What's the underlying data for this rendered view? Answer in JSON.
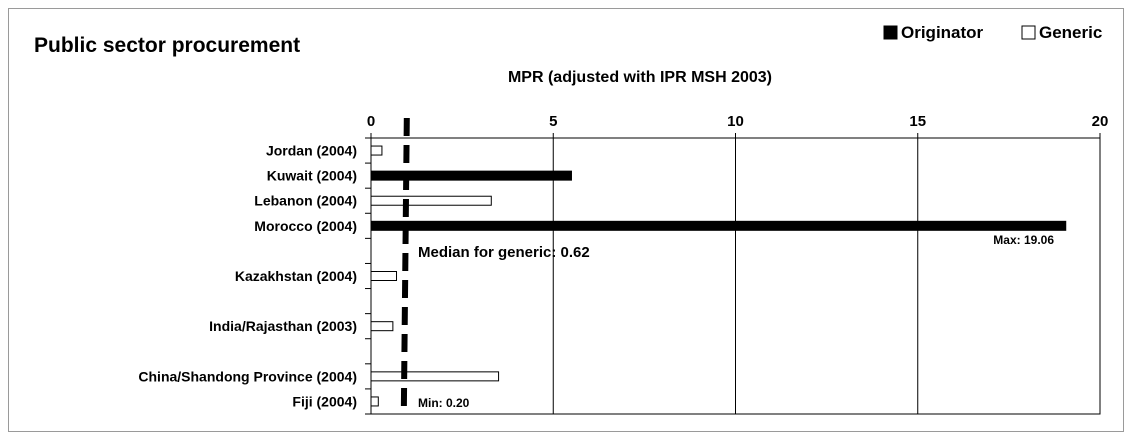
{
  "chart_data": {
    "type": "bar",
    "orientation": "horizontal",
    "title": "Public sector procurement",
    "subtitle": "MPR (adjusted with IPR MSH 2003)",
    "xlim": [
      0,
      20
    ],
    "x_ticks": [
      0,
      5,
      10,
      15,
      20
    ],
    "grid": "vertical",
    "legend_position": "top-right",
    "categories": [
      "Jordan (2004)",
      "Kuwait (2004)",
      "Lebanon (2004)",
      "Morocco (2004)",
      "",
      "Kazakhstan (2004)",
      "",
      "India/Rajasthan (2003)",
      "",
      "China/Shandong Province (2004)",
      "Fiji (2004)"
    ],
    "series": [
      {
        "name": "Originator",
        "color": "#000000",
        "values": [
          null,
          5.5,
          null,
          19.06,
          null,
          null,
          null,
          null,
          null,
          null,
          null
        ]
      },
      {
        "name": "Generic",
        "color": "#ffffff",
        "values": [
          0.3,
          null,
          3.3,
          null,
          null,
          0.7,
          null,
          0.6,
          null,
          3.5,
          0.2
        ]
      }
    ],
    "reference_line": {
      "value": 0.9,
      "style": "dashed",
      "color": "#000000"
    },
    "annotations": {
      "median": "Median for generic: 0.62",
      "max": "Max: 19.06",
      "min": "Min: 0.20"
    }
  }
}
